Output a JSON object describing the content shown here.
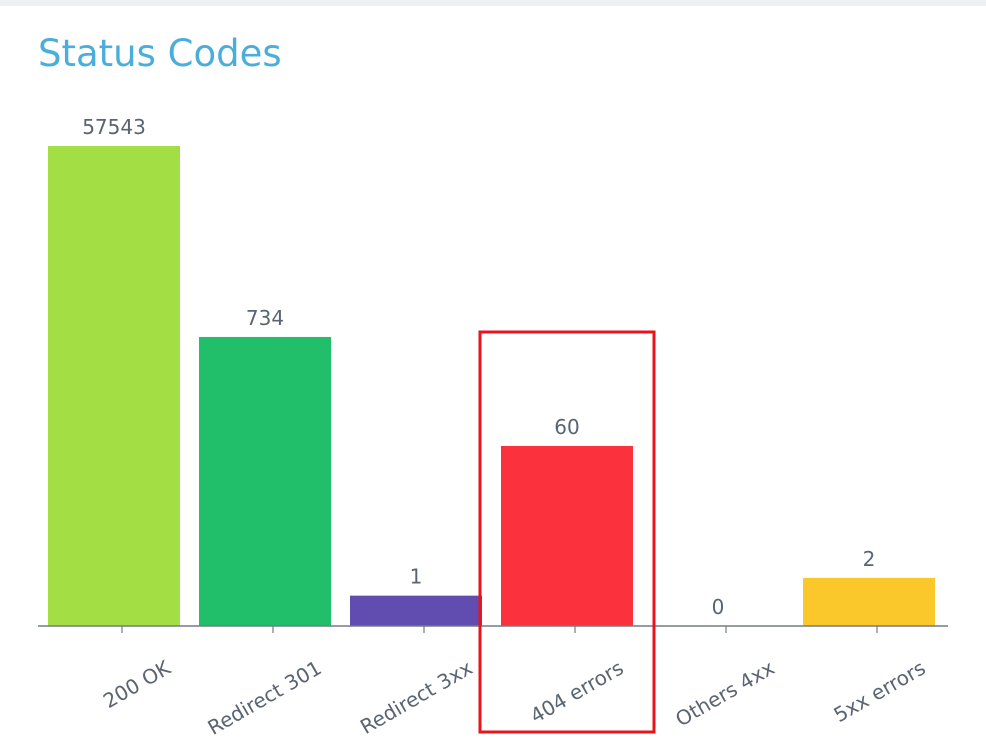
{
  "panel": {
    "title": "Status Codes"
  },
  "chart_data": {
    "type": "bar",
    "title": "Status Codes",
    "xlabel": "",
    "ylabel": "",
    "scale": "log",
    "grid": false,
    "categories": [
      "200 OK",
      "Redirect 301",
      "Redirect 3xx",
      "404 errors",
      "Others 4xx",
      "5xx errors"
    ],
    "values": [
      57543,
      734,
      1,
      60,
      0,
      2
    ],
    "colors": [
      "#a3de44",
      "#22bf6b",
      "#604daf",
      "#fb323d",
      "#b0b6bf",
      "#fbc82b"
    ],
    "highlight": {
      "category": "404 errors",
      "color": "#e8141c"
    },
    "axis_color": "#737b86",
    "label_color": "#5a6472"
  }
}
